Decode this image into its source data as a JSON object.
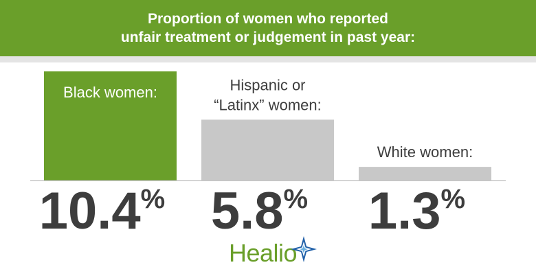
{
  "header": {
    "title_line1": "Proportion of women who reported",
    "title_line2": "unfair treatment or judgement in past year:"
  },
  "chart_data": {
    "type": "bar",
    "categories": [
      "Black women:",
      "Hispanic or “Latinx” women:",
      "White women:"
    ],
    "category_lines": [
      [
        "Black women:"
      ],
      [
        "Hispanic or",
        "“Latinx” women:"
      ],
      [
        "White women:"
      ]
    ],
    "values": [
      10.4,
      5.8,
      1.3
    ],
    "value_labels": [
      "10.4",
      "5.8",
      "1.3"
    ],
    "unit": "%",
    "ylim": [
      0,
      10.4
    ],
    "grid": false,
    "colors": [
      "#6a9f2a",
      "#c8c8c8",
      "#c8c8c8"
    ]
  },
  "colors": {
    "accent_green": "#6a9f2a",
    "bar_gray": "#c8c8c8",
    "value_text": "#3d3d3d",
    "star_blue": "#1f5fa8"
  },
  "logo": {
    "text": "Healio",
    "icon": "star-icon"
  }
}
